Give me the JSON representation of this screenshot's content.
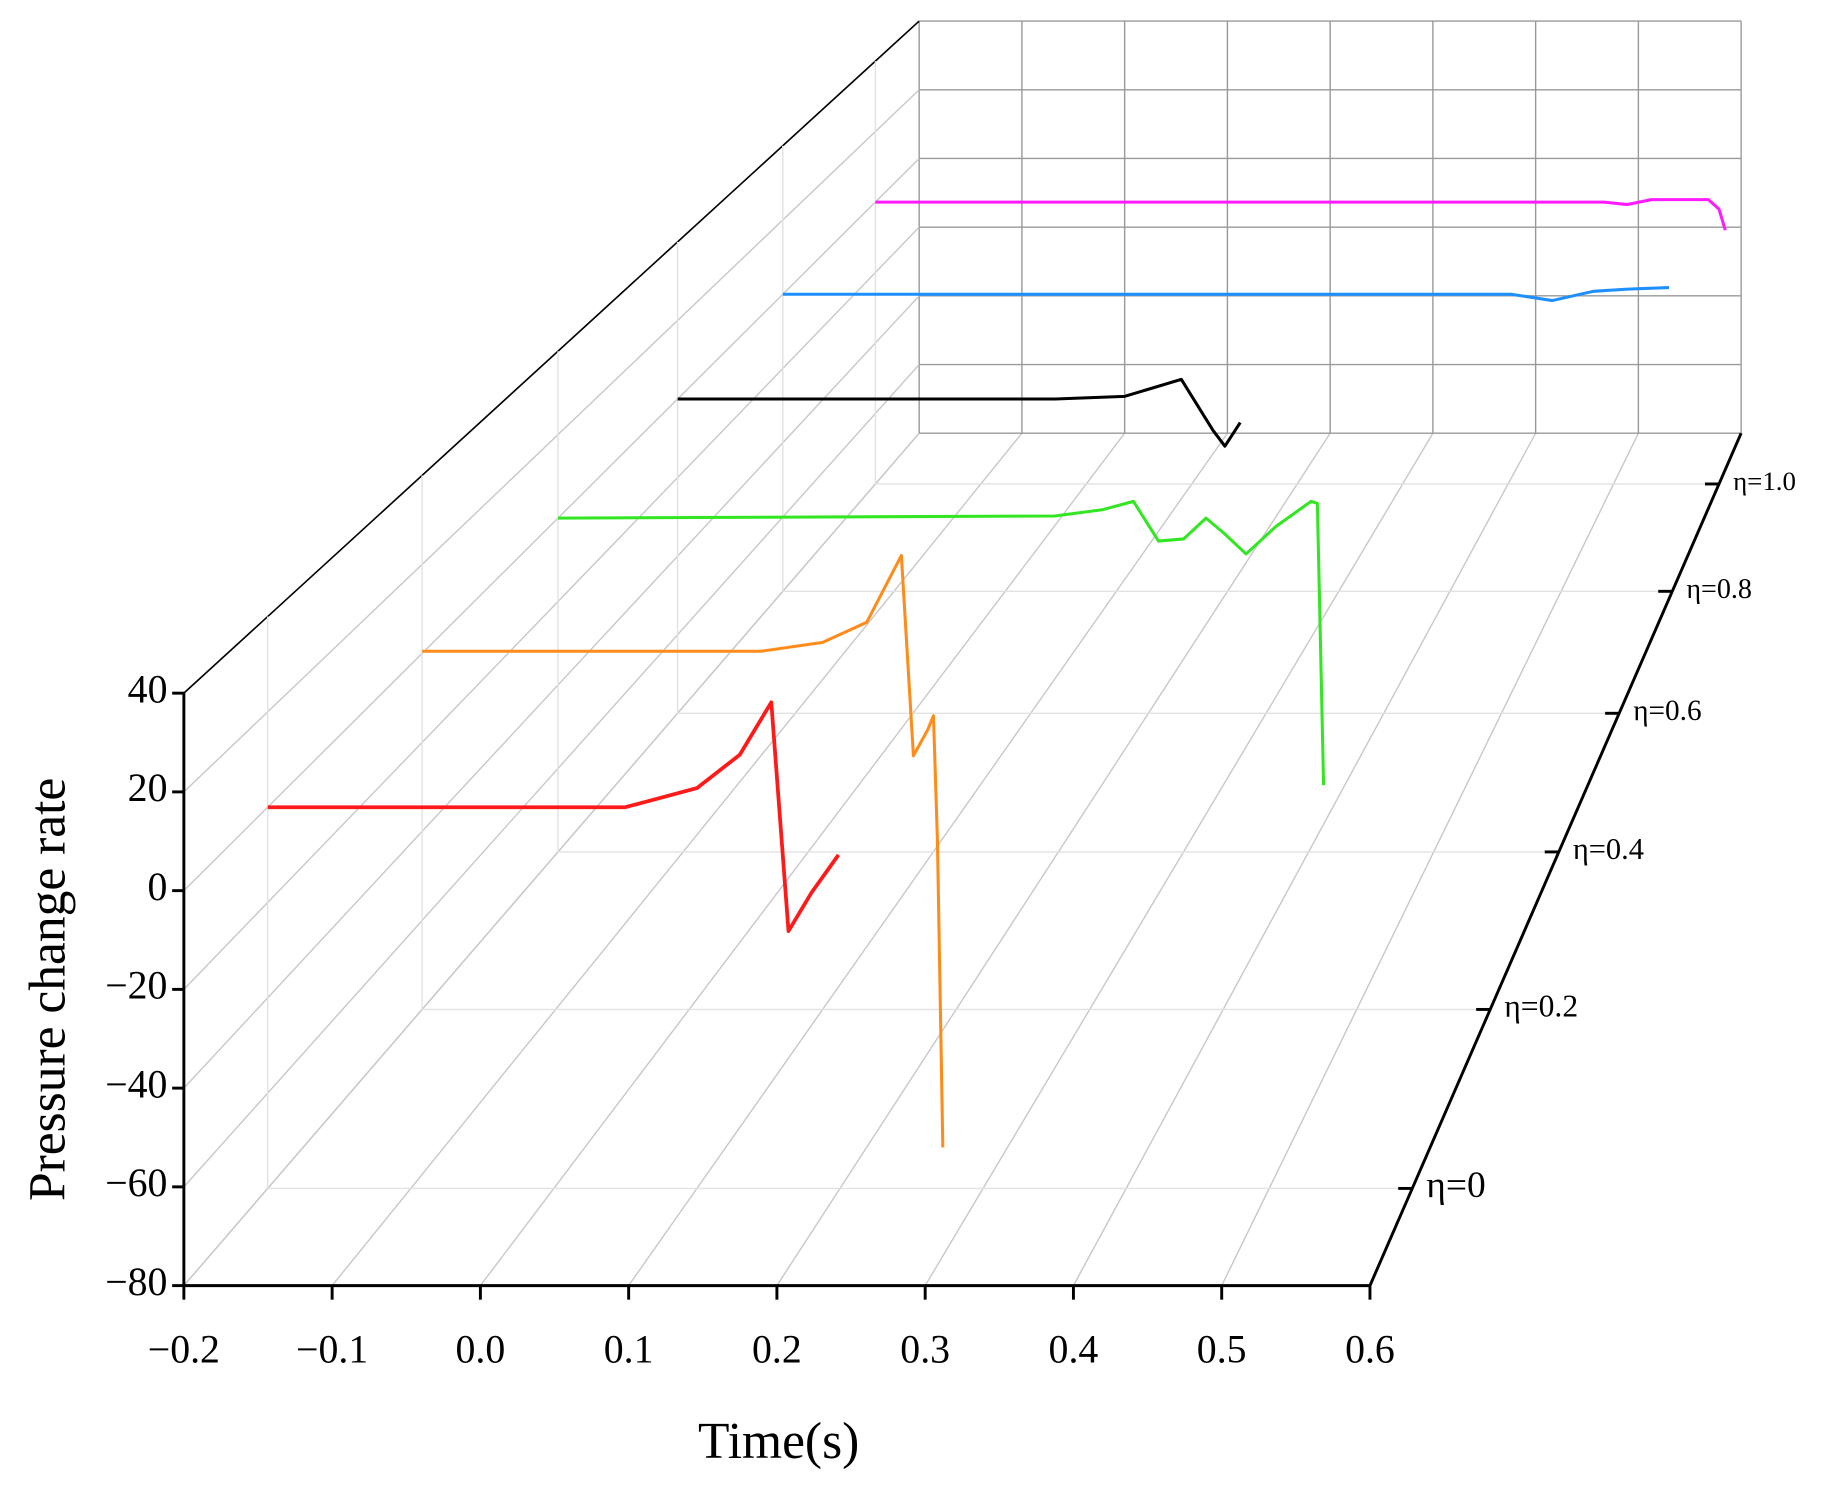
{
  "chart_data": {
    "type": "line3d",
    "xlabel": "Time(s)",
    "ylabel": "Pressure change rate",
    "xlim": [
      -0.2,
      0.6
    ],
    "ylim": [
      -80,
      40
    ],
    "xticks": [
      {
        "value": -0.2,
        "label": "−0.2"
      },
      {
        "value": -0.1,
        "label": "−0.1"
      },
      {
        "value": 0,
        "label": "0.0"
      },
      0.1,
      0.2,
      0.3,
      0.4,
      0.5,
      0.6
    ],
    "yticks": [
      40,
      20,
      0,
      {
        "value": -20,
        "label": "−20"
      },
      {
        "value": -40,
        "label": "−40"
      },
      {
        "value": -60,
        "label": "−60"
      },
      {
        "value": -80,
        "label": "−80"
      }
    ],
    "zticks": [
      {
        "value": 0,
        "label": "η=0"
      },
      {
        "value": 0.2,
        "label": "η=0.2"
      },
      {
        "value": 0.4,
        "label": "η=0.4"
      },
      {
        "value": 0.6,
        "label": "η=0.6"
      },
      {
        "value": 0.8,
        "label": "η=0.8"
      },
      {
        "value": 1.0,
        "label": "η=1.0"
      }
    ],
    "grid": true,
    "series": [
      {
        "z": 0,
        "color": "#ff1a1a",
        "x": [
          -0.2,
          0.05,
          0.1,
          0.13,
          0.152,
          0.164,
          0.18,
          0.199
        ],
        "values": [
          0,
          0,
          4,
          11,
          22,
          -26,
          -18,
          -10
        ]
      },
      {
        "z": 0.2,
        "color": "#ff8c1a",
        "x": [
          -0.2,
          0.054,
          0.1,
          0.133,
          0.159,
          0.168,
          0.179,
          0.183,
          0.186,
          0.19
        ],
        "values": [
          0.5,
          0.5,
          2.5,
          7,
          22,
          -23,
          -17,
          -14,
          -42,
          -111
        ]
      },
      {
        "z": 0.4,
        "color": "#33e622",
        "x": [
          -0.2,
          0.197,
          0.235,
          0.26,
          0.28,
          0.3,
          0.318,
          0.332,
          0.35,
          0.374,
          0.402,
          0.407,
          0.412
        ],
        "values": [
          0,
          0.5,
          2,
          4,
          -5.5,
          -5,
          0,
          -3.5,
          -8.6,
          -2,
          4,
          3.5,
          -64
        ]
      },
      {
        "z": 0.6,
        "color": "#000000",
        "x": [
          -0.2,
          0.121,
          0.18,
          0.228,
          0.24,
          0.255,
          0.265,
          0.278
        ],
        "values": [
          0,
          0,
          0.7,
          5,
          -0.8,
          -8,
          -12,
          -6
        ]
      },
      {
        "z": 0.8,
        "color": "#1e8fff",
        "x": [
          -0.2,
          0.455,
          0.492,
          0.529,
          0.56,
          0.597
        ],
        "values": [
          0,
          0,
          -1.7,
          0.8,
          1.4,
          1.8
        ]
      },
      {
        "z": 1.0,
        "color": "#ff1aff",
        "x": [
          -0.2,
          0.491,
          0.513,
          0.536,
          0.59,
          0.6,
          0.606
        ],
        "values": [
          0,
          0,
          -0.7,
          0.7,
          0.7,
          -2,
          -8
        ]
      }
    ]
  }
}
